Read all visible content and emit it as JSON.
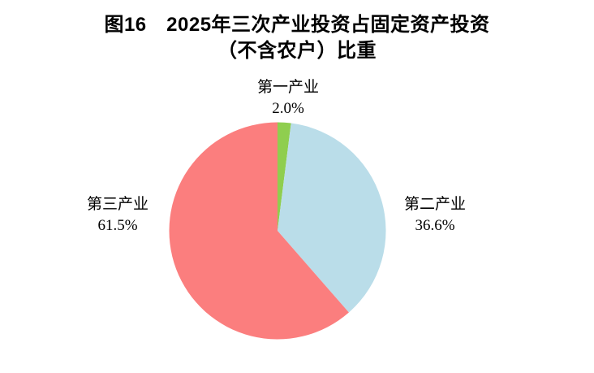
{
  "title": {
    "line1": "图16　2025年三次产业投资占固定资产投资",
    "line2": "（不含农户）比重"
  },
  "chart_data": {
    "type": "pie",
    "title": "图16　2025年三次产业投资占固定资产投资（不含农户）比重",
    "unit": "%",
    "start_angle_deg": 0,
    "direction": "clockwise",
    "legend_position": "none",
    "slices": [
      {
        "label": "第一产业",
        "value": 2.0,
        "display": "2.0%",
        "color": "#8FCE4F"
      },
      {
        "label": "第二产业",
        "value": 36.6,
        "display": "36.6%",
        "color": "#BADDE9"
      },
      {
        "label": "第三产业",
        "value": 61.5,
        "display": "61.5%",
        "color": "#FB7E7E"
      }
    ]
  }
}
